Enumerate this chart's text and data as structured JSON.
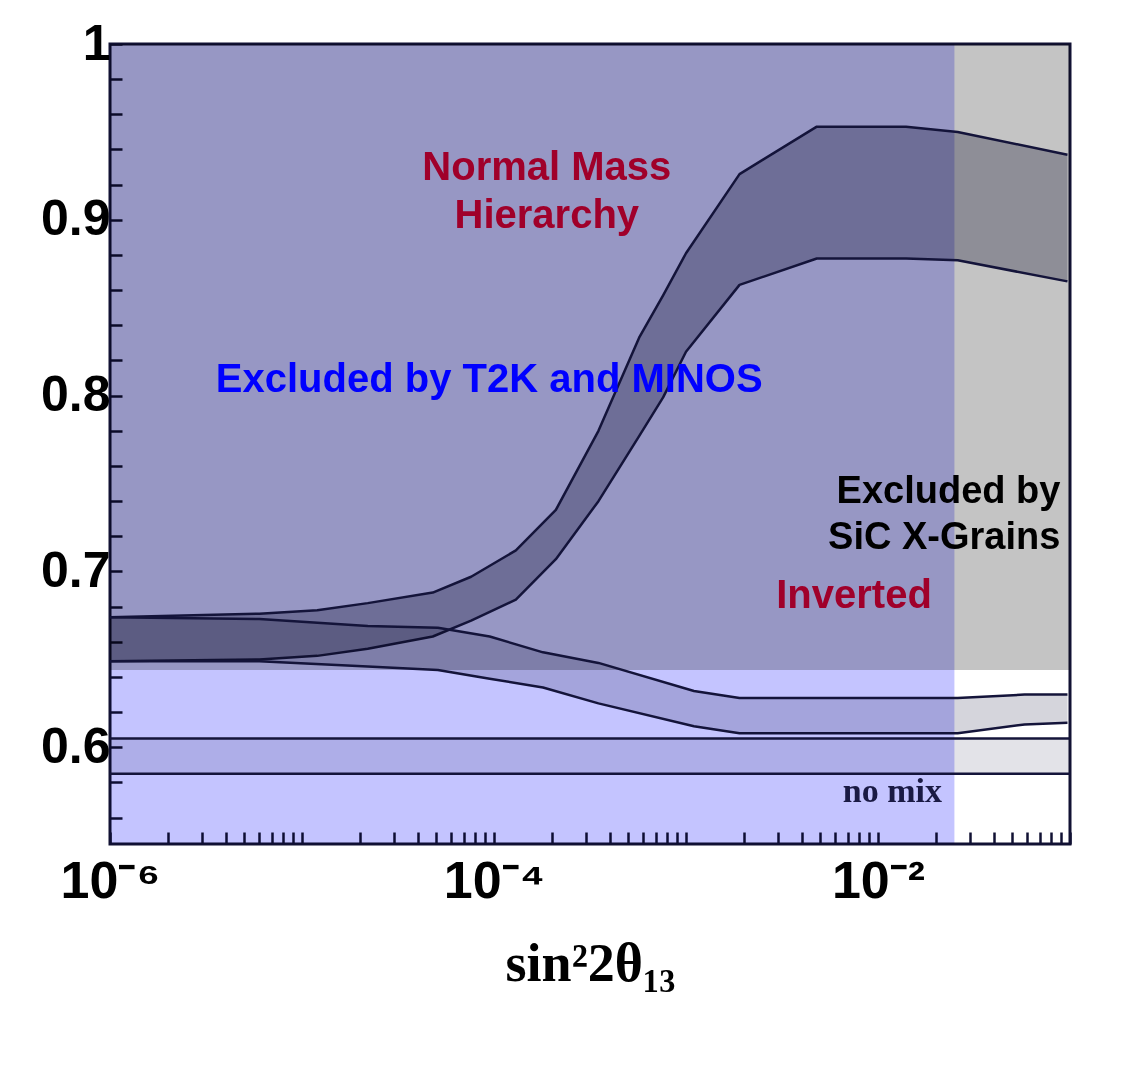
{
  "chart_data": {
    "type": "line",
    "xlabel": "sin²2θ₁₃",
    "log": "x",
    "xlim": [
      1e-06,
      0.1
    ],
    "xticks": [
      {
        "value": 1e-06,
        "label": "10⁻⁶"
      },
      {
        "value": 2e-06,
        "label": null
      },
      {
        "value": 3e-06,
        "label": null
      },
      {
        "value": 4e-06,
        "label": null
      },
      {
        "value": 5e-06,
        "label": null
      },
      {
        "value": 6e-06,
        "label": null
      },
      {
        "value": 7e-06,
        "label": null
      },
      {
        "value": 8e-06,
        "label": null
      },
      {
        "value": 9e-06,
        "label": null
      },
      {
        "value": 1e-05,
        "label": null
      },
      {
        "value": 2e-05,
        "label": null
      },
      {
        "value": 3e-05,
        "label": null
      },
      {
        "value": 4e-05,
        "label": null
      },
      {
        "value": 5e-05,
        "label": null
      },
      {
        "value": 6e-05,
        "label": null
      },
      {
        "value": 7e-05,
        "label": null
      },
      {
        "value": 8e-05,
        "label": null
      },
      {
        "value": 9e-05,
        "label": null
      },
      {
        "value": 0.0001,
        "label": "10⁻⁴"
      },
      {
        "value": 0.0002,
        "label": null
      },
      {
        "value": 0.0003,
        "label": null
      },
      {
        "value": 0.0004,
        "label": null
      },
      {
        "value": 0.0005,
        "label": null
      },
      {
        "value": 0.0006,
        "label": null
      },
      {
        "value": 0.0007,
        "label": null
      },
      {
        "value": 0.0008,
        "label": null
      },
      {
        "value": 0.0009,
        "label": null
      },
      {
        "value": 0.001,
        "label": null
      },
      {
        "value": 0.002,
        "label": null
      },
      {
        "value": 0.003,
        "label": null
      },
      {
        "value": 0.004,
        "label": null
      },
      {
        "value": 0.005,
        "label": null
      },
      {
        "value": 0.006,
        "label": null
      },
      {
        "value": 0.007,
        "label": null
      },
      {
        "value": 0.008,
        "label": null
      },
      {
        "value": 0.009,
        "label": null
      },
      {
        "value": 0.01,
        "label": "10⁻²"
      },
      {
        "value": 0.02,
        "label": null
      },
      {
        "value": 0.03,
        "label": null
      },
      {
        "value": 0.04,
        "label": null
      },
      {
        "value": 0.05,
        "label": null
      },
      {
        "value": 0.06,
        "label": null
      },
      {
        "value": 0.07,
        "label": null
      },
      {
        "value": 0.08,
        "label": null
      },
      {
        "value": 0.09,
        "label": null
      },
      {
        "value": 0.1,
        "label": null
      }
    ],
    "ylim": [
      0.545,
      1.0
    ],
    "yticks": [
      {
        "value": 0.56,
        "label": null
      },
      {
        "value": 0.58,
        "label": null
      },
      0.6,
      {
        "value": 0.62,
        "label": null
      },
      {
        "value": 0.64,
        "label": null
      },
      {
        "value": 0.66,
        "label": null
      },
      {
        "value": 0.68,
        "label": null
      },
      0.7,
      {
        "value": 0.72,
        "label": null
      },
      {
        "value": 0.74,
        "label": null
      },
      {
        "value": 0.76,
        "label": null
      },
      {
        "value": 0.78,
        "label": null
      },
      0.8,
      {
        "value": 0.82,
        "label": null
      },
      {
        "value": 0.84,
        "label": null
      },
      {
        "value": 0.86,
        "label": null
      },
      {
        "value": 0.88,
        "label": null
      },
      0.9,
      {
        "value": 0.92,
        "label": null
      },
      {
        "value": 0.94,
        "label": null
      },
      {
        "value": 0.96,
        "label": null
      },
      {
        "value": 0.98,
        "label": null
      },
      1
    ],
    "bands": [
      {
        "axis": "x",
        "from": 1e-06,
        "to": 0.025,
        "color": "#c4c4ff"
      },
      {
        "axis": "y",
        "from": 0.644,
        "to": 1.0,
        "color": "#c4c4c4"
      }
    ],
    "series": [
      {
        "color": "#14143a",
        "x": [
          1e-06,
          6e-06,
          1.2e-05,
          2.2e-05,
          4.8e-05,
          7.6e-05,
          0.00013,
          0.00021,
          0.00035,
          0.00057,
          0.00076,
          0.001,
          0.0019,
          0.0048,
          0.014,
          0.026,
          0.097
        ],
        "values": [
          0.674,
          0.676,
          0.678,
          0.682,
          0.688,
          0.697,
          0.712,
          0.735,
          0.78,
          0.833,
          0.857,
          0.881,
          0.926,
          0.953,
          0.953,
          0.95,
          0.937
        ],
        "lower": [
          0.649,
          0.65,
          0.652,
          0.656,
          0.663,
          0.672,
          0.684,
          0.707,
          0.74,
          0.777,
          0.799,
          0.825,
          0.863,
          0.878,
          0.878,
          0.877,
          0.865
        ],
        "upper": [
          0.674,
          0.676,
          0.678,
          0.682,
          0.688,
          0.697,
          0.712,
          0.735,
          0.78,
          0.833,
          0.857,
          0.881,
          0.926,
          0.953,
          0.953,
          0.95,
          0.937
        ]
      },
      {
        "color": "#14143a",
        "x": [
          1e-06,
          6e-06,
          1.2e-05,
          2.2e-05,
          4.8e-05,
          7.6e-05,
          0.00013,
          0.00021,
          0.00035,
          0.00057,
          0.00076,
          0.001,
          0.0019,
          0.0048,
          0.014,
          0.026,
          0.097
        ],
        "values": [
          0.649,
          0.65,
          0.652,
          0.656,
          0.663,
          0.672,
          0.684,
          0.707,
          0.74,
          0.777,
          0.799,
          0.825,
          0.863,
          0.878,
          0.878,
          0.877,
          0.865
        ]
      },
      {
        "color": "#14143a",
        "x": [
          1e-06,
          6e-06,
          2.2e-05,
          5.1e-05,
          9.5e-05,
          0.00018,
          0.00035,
          0.0011,
          0.0019,
          0.026,
          0.058,
          0.097
        ],
        "values": [
          0.674,
          0.673,
          0.669,
          0.668,
          0.663,
          0.654,
          0.648,
          0.632,
          0.628,
          0.628,
          0.63,
          0.63
        ],
        "lower": [
          0.649,
          0.649,
          0.646,
          0.644,
          0.639,
          0.634,
          0.625,
          0.612,
          0.608,
          0.608,
          0.613,
          0.614
        ],
        "upper": [
          0.674,
          0.673,
          0.669,
          0.668,
          0.663,
          0.654,
          0.648,
          0.632,
          0.628,
          0.628,
          0.63,
          0.63
        ]
      },
      {
        "color": "#14143a",
        "x": [
          1e-06,
          6e-06,
          2.2e-05,
          5.1e-05,
          9.5e-05,
          0.00018,
          0.00035,
          0.0011,
          0.0019,
          0.026,
          0.058,
          0.097
        ],
        "values": [
          0.649,
          0.649,
          0.646,
          0.644,
          0.639,
          0.634,
          0.625,
          0.612,
          0.608,
          0.608,
          0.613,
          0.614
        ]
      },
      {
        "color": "#14143a",
        "x": [
          1e-06,
          1e-05,
          0.0001,
          0.001,
          0.01,
          0.1
        ],
        "values": [
          0.605,
          0.605,
          0.605,
          0.605,
          0.605,
          0.605
        ],
        "lower": [
          0.585,
          0.585,
          0.585,
          0.585,
          0.585,
          0.585
        ],
        "upper": [
          0.605,
          0.605,
          0.605,
          0.605,
          0.605,
          0.605
        ]
      },
      {
        "color": "#14143a",
        "x": [
          1e-06,
          1e-05,
          0.0001,
          0.001,
          0.01,
          0.1
        ],
        "values": [
          0.585,
          0.585,
          0.585,
          0.585,
          0.585,
          0.585
        ]
      }
    ],
    "annotations": [
      "Normal Mass\nHierarchy",
      "Excluded by T2K and MINOS",
      "Excluded by\nSiC X-Grains",
      "Inverted",
      "no mix"
    ]
  }
}
